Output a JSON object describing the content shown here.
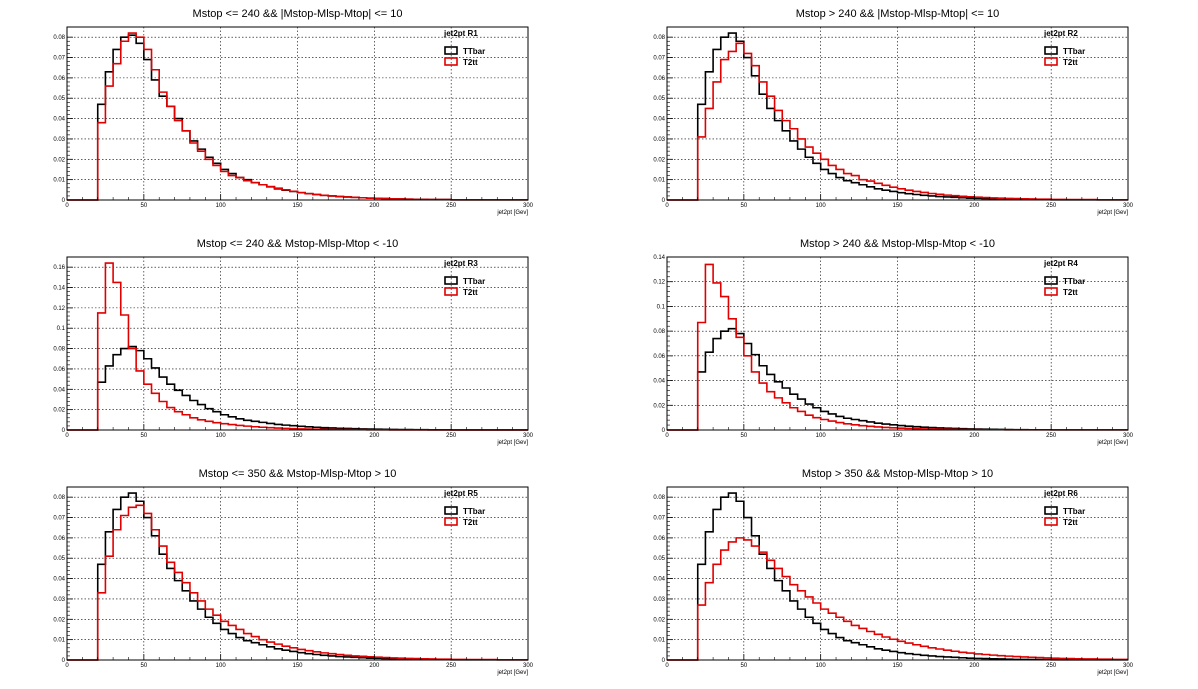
{
  "colors": {
    "TTbar": "#000000",
    "T2tt": "#e00000"
  },
  "bin_edges_start": 0,
  "bin_width": 5,
  "chart_data": [
    {
      "type": "line",
      "title": "Mstop <= 240 && |Mstop-Mlsp-Mtop| <= 10",
      "stat_label": "jet2pt  R1",
      "xlabel": "jet2pt [Gev]",
      "xlim": [
        0,
        300
      ],
      "ylim": [
        0,
        0.085
      ],
      "xticks": [
        0,
        50,
        100,
        150,
        200,
        250,
        300
      ],
      "yticks": [
        0,
        0.01,
        0.02,
        0.03,
        0.04,
        0.05,
        0.06,
        0.07,
        0.08
      ],
      "ytick_labels": [
        "0",
        "0.01",
        "0.02",
        "0.03",
        "0.04",
        "0.05",
        "0.06",
        "0.07",
        "0.08"
      ],
      "grid": true,
      "legend_position": "top-right",
      "series": [
        {
          "name": "TTbar",
          "values": [
            0,
            0,
            0,
            0,
            0.047,
            0.063,
            0.074,
            0.08,
            0.081,
            0.077,
            0.069,
            0.059,
            0.051,
            0.046,
            0.04,
            0.034,
            0.029,
            0.025,
            0.021,
            0.018,
            0.015,
            0.013,
            0.011,
            0.01,
            0.0085,
            0.0075,
            0.0065,
            0.0055,
            0.0048,
            0.0042,
            0.0036,
            0.0031,
            0.0027,
            0.0023,
            0.002,
            0.0017,
            0.0015,
            0.0013,
            0.0011,
            0.0009,
            0.0008,
            0.0007,
            0.0006,
            0.0005,
            0.0004,
            0.0003,
            0.0003,
            0.0002,
            0.0002,
            0.0002,
            0.0001,
            0.0001,
            0.0001,
            0.0001,
            0.0001,
            0.0001,
            0.0001,
            0.0001,
            0.0001,
            0.0001
          ]
        },
        {
          "name": "T2tt",
          "values": [
            0,
            0,
            0,
            0,
            0.038,
            0.056,
            0.067,
            0.078,
            0.082,
            0.08,
            0.074,
            0.064,
            0.053,
            0.046,
            0.039,
            0.034,
            0.028,
            0.024,
            0.02,
            0.017,
            0.014,
            0.012,
            0.011,
            0.0095,
            0.0085,
            0.0075,
            0.0066,
            0.0058,
            0.005,
            0.0043,
            0.0036,
            0.0031,
            0.0027,
            0.0023,
            0.002,
            0.0017,
            0.0015,
            0.0013,
            0.0011,
            0.0009,
            0.0008,
            0.0007,
            0.0006,
            0.0005,
            0.0004,
            0.0003,
            0.0003,
            0.0002,
            0.0002,
            0.0002,
            0.0001,
            0.0001,
            0.0001,
            0.0001,
            0.0001,
            0.0001,
            0.0001,
            0.0001,
            0.0001,
            0.0001
          ]
        }
      ]
    },
    {
      "type": "line",
      "title": "Mstop > 240 && |Mstop-Mlsp-Mtop| <= 10",
      "stat_label": "jet2pt  R2",
      "xlabel": "jet2pt [Gev]",
      "xlim": [
        0,
        300
      ],
      "ylim": [
        0,
        0.085
      ],
      "xticks": [
        0,
        50,
        100,
        150,
        200,
        250,
        300
      ],
      "yticks": [
        0,
        0.01,
        0.02,
        0.03,
        0.04,
        0.05,
        0.06,
        0.07,
        0.08
      ],
      "ytick_labels": [
        "0",
        "0.01",
        "0.02",
        "0.03",
        "0.04",
        "0.05",
        "0.06",
        "0.07",
        "0.08"
      ],
      "grid": true,
      "legend_position": "top-right",
      "series": [
        {
          "name": "TTbar",
          "values": [
            0,
            0,
            0,
            0,
            0.047,
            0.063,
            0.074,
            0.08,
            0.082,
            0.078,
            0.07,
            0.061,
            0.052,
            0.045,
            0.039,
            0.034,
            0.029,
            0.025,
            0.021,
            0.018,
            0.015,
            0.013,
            0.011,
            0.0095,
            0.0085,
            0.0075,
            0.0065,
            0.0055,
            0.0048,
            0.0042,
            0.0036,
            0.0031,
            0.0027,
            0.0023,
            0.002,
            0.0017,
            0.0015,
            0.0013,
            0.0011,
            0.0009,
            0.0008,
            0.0007,
            0.0006,
            0.0005,
            0.0004,
            0.0003,
            0.0003,
            0.0002,
            0.0002,
            0.0002,
            0.0001,
            0.0001,
            0.0001,
            0.0001,
            0.0001,
            0.0001,
            0.0001,
            0.0001,
            0.0001,
            0.0001
          ]
        },
        {
          "name": "T2tt",
          "values": [
            0,
            0,
            0,
            0,
            0.031,
            0.045,
            0.058,
            0.069,
            0.073,
            0.077,
            0.072,
            0.066,
            0.058,
            0.051,
            0.044,
            0.039,
            0.035,
            0.03,
            0.026,
            0.023,
            0.02,
            0.017,
            0.015,
            0.013,
            0.012,
            0.01,
            0.0093,
            0.0082,
            0.0072,
            0.0063,
            0.0055,
            0.0048,
            0.0042,
            0.0037,
            0.0032,
            0.0028,
            0.0024,
            0.0021,
            0.0018,
            0.0016,
            0.0014,
            0.0012,
            0.001,
            0.0009,
            0.0008,
            0.0007,
            0.0006,
            0.0005,
            0.0004,
            0.0004,
            0.0003,
            0.0003,
            0.0002,
            0.0002,
            0.0002,
            0.0002,
            0.0001,
            0.0001,
            0.0001,
            0.0001
          ]
        }
      ]
    },
    {
      "type": "line",
      "title": "Mstop <= 240 && Mstop-Mlsp-Mtop < -10",
      "stat_label": "jet2pt  R3",
      "xlabel": "jet2pt [Gev]",
      "xlim": [
        0,
        300
      ],
      "ylim": [
        0,
        0.17
      ],
      "xticks": [
        0,
        50,
        100,
        150,
        200,
        250,
        300
      ],
      "yticks": [
        0,
        0.02,
        0.04,
        0.06,
        0.08,
        0.1,
        0.12,
        0.14,
        0.16
      ],
      "ytick_labels": [
        "0",
        "0.02",
        "0.04",
        "0.06",
        "0.08",
        "0.1",
        "0.12",
        "0.14",
        "0.16"
      ],
      "grid": true,
      "legend_position": "top-right",
      "series": [
        {
          "name": "TTbar",
          "values": [
            0,
            0,
            0,
            0,
            0.047,
            0.063,
            0.074,
            0.08,
            0.082,
            0.078,
            0.07,
            0.061,
            0.052,
            0.045,
            0.039,
            0.034,
            0.029,
            0.025,
            0.021,
            0.018,
            0.015,
            0.013,
            0.011,
            0.0095,
            0.0085,
            0.0075,
            0.0065,
            0.0055,
            0.0048,
            0.0042,
            0.0036,
            0.0031,
            0.0027,
            0.0023,
            0.002,
            0.0017,
            0.0015,
            0.0013,
            0.0011,
            0.0009,
            0.0008,
            0.0007,
            0.0006,
            0.0005,
            0.0004,
            0.0003,
            0.0003,
            0.0002,
            0.0002,
            0.0002,
            0.0001,
            0.0001,
            0.0001,
            0.0001,
            0.0001,
            0.0001,
            0.0001,
            0.0001,
            0.0001,
            0.0001
          ]
        },
        {
          "name": "T2tt",
          "values": [
            0,
            0,
            0,
            0,
            0.115,
            0.164,
            0.145,
            0.113,
            0.08,
            0.058,
            0.045,
            0.036,
            0.028,
            0.022,
            0.018,
            0.015,
            0.012,
            0.01,
            0.0085,
            0.0072,
            0.0062,
            0.0053,
            0.0045,
            0.0038,
            0.0032,
            0.0027,
            0.0023,
            0.0019,
            0.0016,
            0.0013,
            0.0011,
            0.0009,
            0.0008,
            0.0007,
            0.0006,
            0.0005,
            0.0004,
            0.0003,
            0.0003,
            0.0002,
            0.0002,
            0.0002,
            0.0001,
            0.0001,
            0.0001,
            0.0001,
            0.0001,
            0.0001,
            0.0001,
            0.0001,
            0.0001,
            0.0001,
            0.0001,
            0.0001,
            0.0001,
            0.0001,
            0.0001,
            0.0001,
            0.0001,
            0.0001
          ]
        }
      ]
    },
    {
      "type": "line",
      "title": "Mstop > 240 && Mstop-Mlsp-Mtop < -10",
      "stat_label": "jet2pt  R4",
      "xlabel": "jet2pt [Gev]",
      "xlim": [
        0,
        300
      ],
      "ylim": [
        0,
        0.14
      ],
      "xticks": [
        0,
        50,
        100,
        150,
        200,
        250,
        300
      ],
      "yticks": [
        0,
        0.02,
        0.04,
        0.06,
        0.08,
        0.1,
        0.12,
        0.14
      ],
      "ytick_labels": [
        "0",
        "0.02",
        "0.04",
        "0.06",
        "0.08",
        "0.1",
        "0.12",
        "0.14"
      ],
      "grid": true,
      "legend_position": "top-right",
      "series": [
        {
          "name": "TTbar",
          "values": [
            0,
            0,
            0,
            0,
            0.047,
            0.063,
            0.074,
            0.08,
            0.082,
            0.078,
            0.07,
            0.061,
            0.052,
            0.045,
            0.039,
            0.034,
            0.029,
            0.025,
            0.021,
            0.018,
            0.015,
            0.013,
            0.011,
            0.0095,
            0.0085,
            0.0075,
            0.0065,
            0.0055,
            0.0048,
            0.0042,
            0.0036,
            0.0031,
            0.0027,
            0.0023,
            0.002,
            0.0017,
            0.0015,
            0.0013,
            0.0011,
            0.0009,
            0.0008,
            0.0007,
            0.0006,
            0.0005,
            0.0004,
            0.0003,
            0.0003,
            0.0002,
            0.0002,
            0.0002,
            0.0001,
            0.0001,
            0.0001,
            0.0001,
            0.0001,
            0.0001,
            0.0001,
            0.0001,
            0.0001,
            0.0001
          ]
        },
        {
          "name": "T2tt",
          "values": [
            0,
            0,
            0,
            0,
            0.087,
            0.134,
            0.119,
            0.108,
            0.09,
            0.075,
            0.06,
            0.047,
            0.038,
            0.031,
            0.026,
            0.022,
            0.018,
            0.015,
            0.012,
            0.01,
            0.0085,
            0.0072,
            0.006,
            0.005,
            0.0042,
            0.0035,
            0.003,
            0.0025,
            0.0021,
            0.0018,
            0.0015,
            0.0013,
            0.0011,
            0.0009,
            0.0008,
            0.0007,
            0.0006,
            0.0005,
            0.0004,
            0.0003,
            0.0003,
            0.0002,
            0.0002,
            0.0002,
            0.0001,
            0.0001,
            0.0001,
            0.0001,
            0.0001,
            0.0001,
            0.0001,
            0.0001,
            0.0001,
            0.0001,
            0.0001,
            0.0001,
            0.0001,
            0.0001,
            0.0001,
            0.0001
          ]
        }
      ]
    },
    {
      "type": "line",
      "title": "Mstop <= 350 && Mstop-Mlsp-Mtop > 10",
      "stat_label": "jet2pt  R5",
      "xlabel": "jet2pt [Gev]",
      "xlim": [
        0,
        300
      ],
      "ylim": [
        0,
        0.085
      ],
      "xticks": [
        0,
        50,
        100,
        150,
        200,
        250,
        300
      ],
      "yticks": [
        0,
        0.01,
        0.02,
        0.03,
        0.04,
        0.05,
        0.06,
        0.07,
        0.08
      ],
      "ytick_labels": [
        "0",
        "0.01",
        "0.02",
        "0.03",
        "0.04",
        "0.05",
        "0.06",
        "0.07",
        "0.08"
      ],
      "grid": true,
      "legend_position": "top-right",
      "series": [
        {
          "name": "TTbar",
          "values": [
            0,
            0,
            0,
            0,
            0.047,
            0.063,
            0.074,
            0.08,
            0.082,
            0.078,
            0.07,
            0.061,
            0.052,
            0.045,
            0.039,
            0.034,
            0.029,
            0.025,
            0.021,
            0.018,
            0.015,
            0.013,
            0.011,
            0.0095,
            0.0085,
            0.0075,
            0.0065,
            0.0055,
            0.0048,
            0.0042,
            0.0036,
            0.0031,
            0.0027,
            0.0023,
            0.002,
            0.0017,
            0.0015,
            0.0013,
            0.0011,
            0.0009,
            0.0008,
            0.0007,
            0.0006,
            0.0005,
            0.0004,
            0.0003,
            0.0003,
            0.0002,
            0.0002,
            0.0002,
            0.0001,
            0.0001,
            0.0001,
            0.0001,
            0.0001,
            0.0001,
            0.0001,
            0.0001,
            0.0001,
            0.0001
          ]
        },
        {
          "name": "T2tt",
          "values": [
            0,
            0,
            0,
            0,
            0.033,
            0.051,
            0.064,
            0.071,
            0.075,
            0.076,
            0.072,
            0.064,
            0.056,
            0.048,
            0.043,
            0.038,
            0.033,
            0.029,
            0.025,
            0.022,
            0.019,
            0.017,
            0.015,
            0.013,
            0.0115,
            0.01,
            0.0088,
            0.0078,
            0.0068,
            0.006,
            0.0052,
            0.0046,
            0.004,
            0.0035,
            0.0031,
            0.0027,
            0.0023,
            0.002,
            0.0018,
            0.0016,
            0.0014,
            0.0012,
            0.001,
            0.0009,
            0.0008,
            0.0007,
            0.0006,
            0.0005,
            0.0004,
            0.0004,
            0.0003,
            0.0003,
            0.0002,
            0.0002,
            0.0002,
            0.0002,
            0.0001,
            0.0001,
            0.0001,
            0.0001
          ]
        }
      ]
    },
    {
      "type": "line",
      "title": "Mstop > 350 && Mstop-Mlsp-Mtop > 10",
      "stat_label": "jet2pt  R6",
      "xlabel": "jet2pt [Gev]",
      "xlim": [
        0,
        300
      ],
      "ylim": [
        0,
        0.085
      ],
      "xticks": [
        0,
        50,
        100,
        150,
        200,
        250,
        300
      ],
      "yticks": [
        0,
        0.01,
        0.02,
        0.03,
        0.04,
        0.05,
        0.06,
        0.07,
        0.08
      ],
      "ytick_labels": [
        "0",
        "0.01",
        "0.02",
        "0.03",
        "0.04",
        "0.05",
        "0.06",
        "0.07",
        "0.08"
      ],
      "grid": true,
      "legend_position": "top-right",
      "series": [
        {
          "name": "TTbar",
          "values": [
            0,
            0,
            0,
            0,
            0.047,
            0.063,
            0.074,
            0.08,
            0.082,
            0.078,
            0.07,
            0.061,
            0.052,
            0.045,
            0.039,
            0.034,
            0.029,
            0.025,
            0.021,
            0.018,
            0.015,
            0.013,
            0.011,
            0.0095,
            0.0085,
            0.0075,
            0.0065,
            0.0055,
            0.0048,
            0.0042,
            0.0036,
            0.0031,
            0.0027,
            0.0023,
            0.002,
            0.0017,
            0.0015,
            0.0013,
            0.0011,
            0.0009,
            0.0008,
            0.0007,
            0.0006,
            0.0005,
            0.0004,
            0.0003,
            0.0003,
            0.0002,
            0.0002,
            0.0002,
            0.0001,
            0.0001,
            0.0001,
            0.0001,
            0.0001,
            0.0001,
            0.0001,
            0.0001,
            0.0001,
            0.0001
          ]
        },
        {
          "name": "T2tt",
          "values": [
            0,
            0,
            0,
            0,
            0.027,
            0.038,
            0.047,
            0.054,
            0.058,
            0.06,
            0.059,
            0.056,
            0.053,
            0.049,
            0.045,
            0.041,
            0.037,
            0.034,
            0.031,
            0.028,
            0.025,
            0.023,
            0.021,
            0.019,
            0.017,
            0.0155,
            0.014,
            0.0126,
            0.0113,
            0.0102,
            0.0092,
            0.0083,
            0.0075,
            0.0067,
            0.006,
            0.0054,
            0.0048,
            0.0043,
            0.0038,
            0.0034,
            0.003,
            0.0027,
            0.0024,
            0.0021,
            0.0019,
            0.0017,
            0.0015,
            0.0013,
            0.0012,
            0.001,
            0.0009,
            0.0008,
            0.0007,
            0.0006,
            0.0005,
            0.0005,
            0.0004,
            0.0004,
            0.0003,
            0.0003
          ]
        }
      ]
    }
  ]
}
